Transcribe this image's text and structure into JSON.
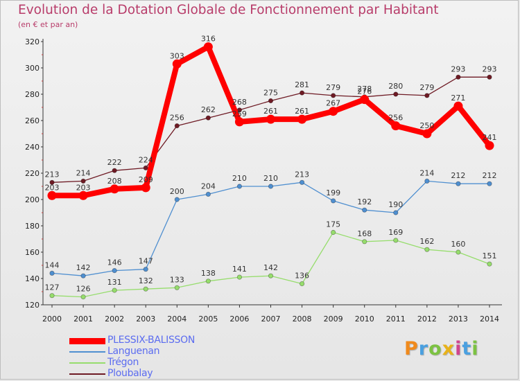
{
  "title": "Evolution de la Dotation Globale de Fonctionnement par Habitant",
  "subtitle": "(en € et par an)",
  "logo": "Proxiti",
  "colors": {
    "title": "#b83c6a",
    "legend_text": "#5b6cf0",
    "axis": "#333333"
  },
  "chart_data": {
    "type": "line",
    "title": "Evolution de la Dotation Globale de Fonctionnement par Habitant",
    "subtitle": "(en € et par an)",
    "xlabel": "",
    "ylabel": "",
    "x": [
      "2000",
      "2001",
      "2002",
      "2003",
      "2004",
      "2005",
      "2006",
      "2007",
      "2008",
      "2009",
      "2010",
      "2011",
      "2012",
      "2013",
      "2014"
    ],
    "ylim": [
      120,
      320
    ],
    "yticks": [
      120,
      140,
      160,
      180,
      200,
      220,
      240,
      260,
      280,
      300,
      320
    ],
    "grid": false,
    "legend_position": "bottom-left",
    "series": [
      {
        "name": "PLESSIX-BALISSON",
        "color": "#ff0000",
        "values": [
          203,
          203,
          208,
          209,
          303,
          316,
          259,
          261,
          261,
          267,
          276,
          256,
          250,
          271,
          241
        ]
      },
      {
        "name": "Languenan",
        "color": "#4f8fd0",
        "values": [
          144,
          142,
          146,
          147,
          200,
          204,
          210,
          210,
          213,
          199,
          192,
          190,
          214,
          212,
          212
        ]
      },
      {
        "name": "Trégon",
        "color": "#96dd6c",
        "values": [
          127,
          126,
          131,
          132,
          133,
          138,
          141,
          142,
          136,
          175,
          168,
          169,
          162,
          160,
          151
        ]
      },
      {
        "name": "Ploubalay",
        "color": "#6e1a24",
        "values": [
          213,
          214,
          222,
          224,
          256,
          262,
          268,
          275,
          281,
          279,
          278,
          280,
          279,
          293,
          293
        ]
      }
    ]
  }
}
